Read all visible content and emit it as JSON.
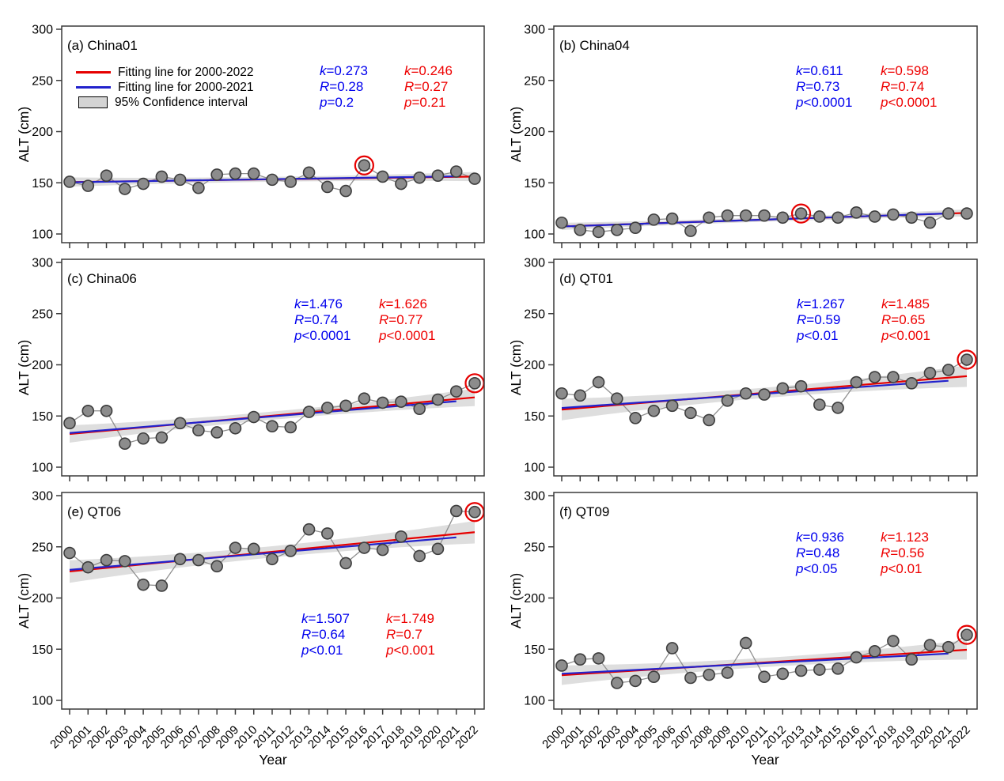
{
  "chart_data": {
    "type": "scatter",
    "shared": {
      "x_label": "Year",
      "y_label": "ALT (cm)",
      "y_ticks": [
        300,
        250,
        200,
        150,
        100
      ],
      "ylim": [
        100,
        300
      ],
      "years": [
        2000,
        2001,
        2002,
        2003,
        2004,
        2005,
        2006,
        2007,
        2008,
        2009,
        2010,
        2011,
        2012,
        2013,
        2014,
        2015,
        2016,
        2017,
        2018,
        2019,
        2020,
        2021,
        2022
      ],
      "grid": false
    },
    "legend": {
      "location": "upper-left of panel (a)",
      "items": [
        {
          "swatch": "line",
          "color": "#e60000",
          "label": "Fitting line for 2000-2022"
        },
        {
          "swatch": "line",
          "color": "#2222cc",
          "label": "Fitting line for 2000-2021"
        },
        {
          "swatch": "box",
          "color": "#d4d4d4",
          "label": "95% Confidence interval"
        }
      ]
    },
    "style": {
      "fit_line_2022": "#e60000",
      "fit_line_2021": "#2222cc",
      "stats_blue_text": "#0000ee",
      "stats_red_text": "#ee0000",
      "point_fill": "#8c8c8c",
      "point_edge": "#3d3d3d",
      "connector": "#8f8f8f",
      "ci_band": "#c8c8c8",
      "axis": "#3a3a3a",
      "highlight_ring": "#e60000"
    },
    "panels": [
      {
        "id": "a",
        "label": "(a) China01",
        "site": "China01",
        "col": 0,
        "row": 0,
        "values": [
          151,
          147,
          157,
          144,
          149,
          156,
          153,
          145,
          158,
          159,
          159,
          153,
          151,
          160,
          146,
          142,
          167,
          156,
          149,
          155,
          157,
          161,
          154
        ],
        "circled_year": 2016,
        "stats_blue": {
          "k": "k=0.273",
          "R": "R=0.28",
          "p": "p=0.2"
        },
        "stats_red": {
          "k": "k=0.246",
          "R": "R=0.27",
          "p": "p=0.21"
        },
        "stats_position": "top",
        "fit_blue": {
          "x0": 2000,
          "y0": 150.5,
          "x1": 2021,
          "y1": 156.3
        },
        "fit_red": {
          "x0": 2000,
          "y0": 150.7,
          "x1": 2022,
          "y1": 156.1
        },
        "band": {
          "end_halfwidth": 4.5,
          "mid_halfwidth": 2.4
        }
      },
      {
        "id": "b",
        "label": "(b) China04",
        "site": "China04",
        "col": 1,
        "row": 0,
        "values": [
          111,
          104,
          102,
          104,
          106,
          114,
          115,
          103,
          116,
          118,
          118,
          118,
          116,
          120,
          117,
          116,
          121,
          117,
          119,
          116,
          111,
          120,
          120
        ],
        "circled_year": 2013,
        "stats_blue": {
          "k": "k=0.611",
          "R": "R=0.73",
          "p": "p<0.0001"
        },
        "stats_red": {
          "k": "k=0.598",
          "R": "R=0.74",
          "p": "p<0.0001"
        },
        "stats_position": "top",
        "fit_blue": {
          "x0": 2000,
          "y0": 107.3,
          "x1": 2021,
          "y1": 120.1
        },
        "fit_red": {
          "x0": 2000,
          "y0": 107.4,
          "x1": 2022,
          "y1": 120.6
        },
        "band": {
          "end_halfwidth": 3.5,
          "mid_halfwidth": 2.0
        }
      },
      {
        "id": "c",
        "label": "(c) China06",
        "site": "China06",
        "col": 0,
        "row": 1,
        "values": [
          143,
          155,
          155,
          123,
          128,
          129,
          143,
          136,
          134,
          138,
          149,
          140,
          139,
          154,
          158,
          160,
          167,
          163,
          164,
          157,
          166,
          174,
          182
        ],
        "circled_year": 2022,
        "stats_blue": {
          "k": "k=1.476",
          "R": "R=0.74",
          "p": "p<0.0001"
        },
        "stats_red": {
          "k": "k=1.626",
          "R": "R=0.77",
          "p": "p<0.0001"
        },
        "stats_position": "top",
        "fit_blue": {
          "x0": 2000,
          "y0": 133.4,
          "x1": 2021,
          "y1": 164.4
        },
        "fit_red": {
          "x0": 2000,
          "y0": 132.4,
          "x1": 2022,
          "y1": 168.2
        },
        "band": {
          "end_halfwidth": 8.5,
          "mid_halfwidth": 4.0
        }
      },
      {
        "id": "d",
        "label": "(d) QT01",
        "site": "QT01",
        "col": 1,
        "row": 1,
        "values": [
          172,
          170,
          183,
          167,
          148,
          155,
          160,
          153,
          146,
          165,
          172,
          171,
          177,
          179,
          161,
          158,
          183,
          188,
          188,
          182,
          192,
          195,
          205
        ],
        "circled_year": 2022,
        "stats_blue": {
          "k": "k=1.267",
          "R": "R=0.59",
          "p": "p<0.01"
        },
        "stats_red": {
          "k": "k=1.485",
          "R": "R=0.65",
          "p": "p<0.001"
        },
        "stats_position": "top",
        "fit_blue": {
          "x0": 2000,
          "y0": 157.8,
          "x1": 2021,
          "y1": 184.4
        },
        "fit_red": {
          "x0": 2000,
          "y0": 156.3,
          "x1": 2022,
          "y1": 188.9
        },
        "band": {
          "end_halfwidth": 10.5,
          "mid_halfwidth": 5.0
        }
      },
      {
        "id": "e",
        "label": "(e) QT06",
        "site": "QT06",
        "col": 0,
        "row": 2,
        "values": [
          244,
          230,
          237,
          236,
          213,
          212,
          238,
          237,
          231,
          249,
          248,
          238,
          246,
          267,
          263,
          234,
          249,
          247,
          260,
          241,
          248,
          285,
          284
        ],
        "circled_year": 2022,
        "stats_blue": {
          "k": "k=1.507",
          "R": "R=0.64",
          "p": "p<0.01"
        },
        "stats_red": {
          "k": "k=1.749",
          "R": "R=0.7",
          "p": "p<0.001"
        },
        "stats_position": "bottom",
        "fit_blue": {
          "x0": 2000,
          "y0": 227.5,
          "x1": 2021,
          "y1": 259.2
        },
        "fit_red": {
          "x0": 2000,
          "y0": 225.9,
          "x1": 2022,
          "y1": 264.3
        },
        "band": {
          "end_halfwidth": 11.0,
          "mid_halfwidth": 5.5
        }
      },
      {
        "id": "f",
        "label": "(f) QT09",
        "site": "QT09",
        "col": 1,
        "row": 2,
        "values": [
          134,
          140,
          141,
          117,
          119,
          123,
          151,
          122,
          125,
          127,
          156,
          123,
          126,
          129,
          130,
          131,
          142,
          148,
          158,
          140,
          154,
          152,
          164
        ],
        "circled_year": 2022,
        "stats_blue": {
          "k": "k=0.936",
          "R": "R=0.48",
          "p": "p<0.05"
        },
        "stats_red": {
          "k": "k=1.123",
          "R": "R=0.56",
          "p": "p<0.01"
        },
        "stats_position": "top",
        "fit_blue": {
          "x0": 2000,
          "y0": 126.0,
          "x1": 2021,
          "y1": 145.7
        },
        "fit_red": {
          "x0": 2000,
          "y0": 124.6,
          "x1": 2022,
          "y1": 149.4
        },
        "band": {
          "end_halfwidth": 9.5,
          "mid_halfwidth": 4.5
        }
      }
    ]
  }
}
